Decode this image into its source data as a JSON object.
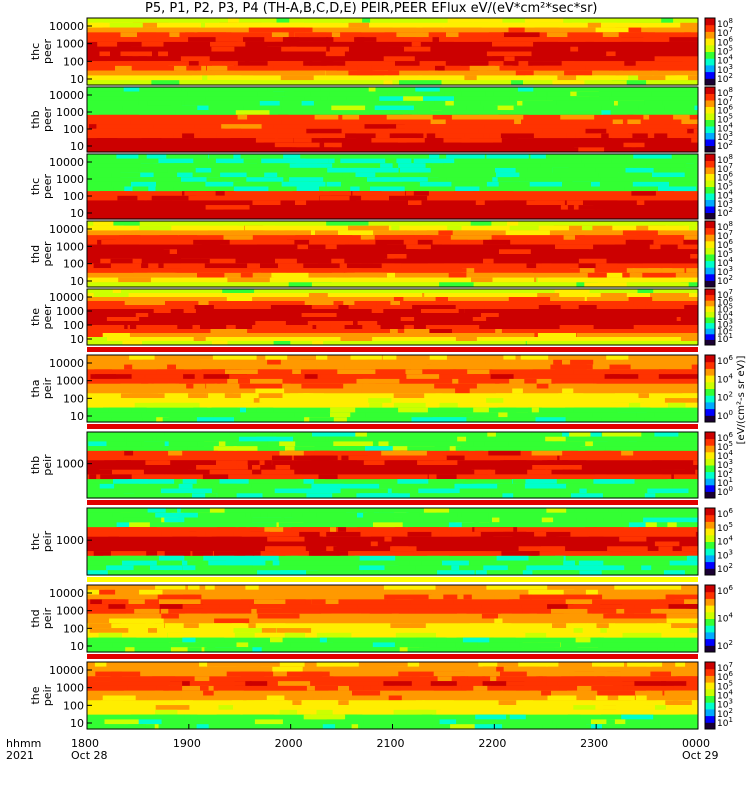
{
  "title": "P5, P1, P2, P3, P4 (TH-A,B,C,D,E) PEIR,PEER EFlux eV/(eV*cm²*sec*sr)",
  "time_axis": {
    "label_line1": "hhmm",
    "label_line2": "2021",
    "ticks": [
      {
        "t": "1800",
        "d": "Oct 28"
      },
      {
        "t": "1900",
        "d": ""
      },
      {
        "t": "2000",
        "d": ""
      },
      {
        "t": "2100",
        "d": ""
      },
      {
        "t": "2200",
        "d": ""
      },
      {
        "t": "2300",
        "d": ""
      },
      {
        "t": "0000",
        "d": "Oct 29"
      }
    ]
  },
  "colorbar_label": "[eV/(cm²-s sr eV)]",
  "colors": {
    "scale": [
      "#1a0033",
      "#0000ff",
      "#00aaff",
      "#00ffcc",
      "#33ff33",
      "#ccff00",
      "#ffee00",
      "#ff9900",
      "#ff3300",
      "#cc0000"
    ],
    "status_red": "#e00000",
    "status_yellow": "#ffff00"
  },
  "chart_data": [
    {
      "type": "heatmap",
      "panel": "thc peer",
      "ylabel": [
        "thc",
        "peer"
      ],
      "yticks": [
        "10000",
        "1000",
        "100",
        "10"
      ],
      "colorbar_ticks": [
        "10^8",
        "10^7",
        "10^6",
        "10^5",
        "10^4",
        "10^3",
        "10^2"
      ],
      "pattern": "peer-red"
    },
    {
      "type": "heatmap",
      "panel": "thb peer",
      "ylabel": [
        "thb",
        "peer"
      ],
      "yticks": [
        "10000",
        "1000",
        "100",
        "10"
      ],
      "colorbar_ticks": [
        "10^8",
        "10^7",
        "10^6",
        "10^5",
        "10^4",
        "10^3",
        "10^2"
      ],
      "pattern": "peer-cool"
    },
    {
      "type": "heatmap",
      "panel": "thc peer",
      "ylabel": [
        "thc",
        "peer"
      ],
      "yticks": [
        "10000",
        "1000",
        "100",
        "10"
      ],
      "colorbar_ticks": [
        "10^8",
        "10^7",
        "10^6",
        "10^5",
        "10^4",
        "10^3",
        "10^2"
      ],
      "pattern": "peer-cool2"
    },
    {
      "type": "heatmap",
      "panel": "thd peer",
      "ylabel": [
        "thd",
        "peer"
      ],
      "yticks": [
        "10000",
        "1000",
        "100",
        "10"
      ],
      "colorbar_ticks": [
        "10^8",
        "10^7",
        "10^6",
        "10^5",
        "10^4",
        "10^3",
        "10^2"
      ],
      "pattern": "peer-red"
    },
    {
      "type": "heatmap",
      "panel": "the peer",
      "ylabel": [
        "the",
        "peer"
      ],
      "yticks": [
        "10000",
        "1000",
        "100",
        "10"
      ],
      "colorbar_ticks": [
        "10^7",
        "10^6",
        "10^5",
        "10^4",
        "10^3",
        "10^2",
        "10^1"
      ],
      "pattern": "peer-red"
    },
    {
      "type": "heatmap",
      "panel": "tha peir",
      "ylabel": [
        "tha",
        "peir"
      ],
      "yticks": [
        "10000",
        "1000",
        "100",
        "10"
      ],
      "colorbar_ticks": [
        "10^6",
        "10^4",
        "10^2",
        "10^0"
      ],
      "pattern": "peir"
    },
    {
      "type": "heatmap",
      "panel": "thb peir",
      "ylabel": [
        "thb",
        "peir"
      ],
      "yticks": [
        "1000"
      ],
      "colorbar_ticks": [
        "10^6",
        "10^5",
        "10^4",
        "10^3",
        "10^2",
        "10^1",
        "10^0"
      ],
      "pattern": "peir-band"
    },
    {
      "type": "heatmap",
      "panel": "thc peir",
      "ylabel": [
        "thc",
        "peir"
      ],
      "yticks": [
        "1000"
      ],
      "colorbar_ticks": [
        "10^6",
        "10^5",
        "10^4",
        "10^3",
        "10^2"
      ],
      "pattern": "peir-band"
    },
    {
      "type": "heatmap",
      "panel": "thd peir",
      "ylabel": [
        "thd",
        "peir"
      ],
      "yticks": [
        "10000",
        "1000",
        "100",
        "10"
      ],
      "colorbar_ticks": [
        "10^6",
        "10^4",
        "10^2"
      ],
      "pattern": "peir"
    },
    {
      "type": "heatmap",
      "panel": "the peir",
      "ylabel": [
        "the",
        "peir"
      ],
      "yticks": [
        "10000",
        "1000",
        "100",
        "10"
      ],
      "colorbar_ticks": [
        "10^7",
        "10^6",
        "10^5",
        "10^4",
        "10^3",
        "10^2",
        "10^1"
      ],
      "pattern": "peir"
    }
  ]
}
